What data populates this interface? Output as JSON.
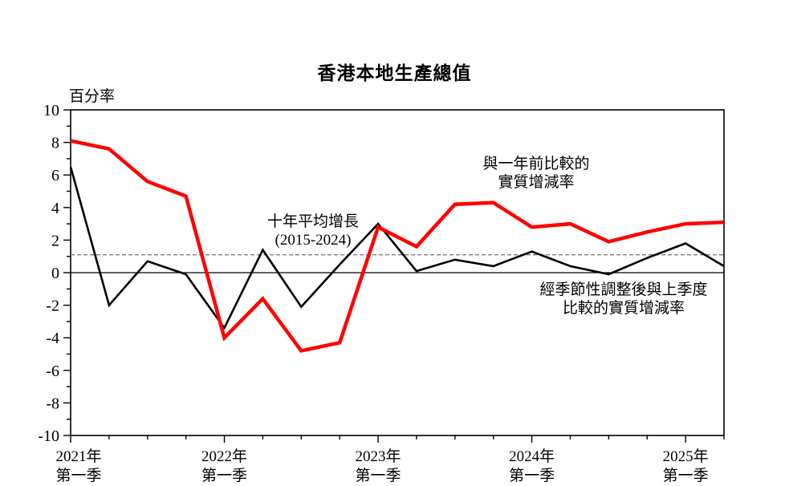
{
  "page": {
    "background": "#ffffff",
    "title": "香港本地生產總值"
  },
  "chart_data": {
    "type": "line",
    "title": "香港本地生產總值",
    "y_axis_unit_label": "百分率",
    "ylim": [
      -10,
      10
    ],
    "ytick_major_step": 2,
    "ytick_minor_step": 1,
    "grid": false,
    "x": [
      "2021Q1",
      "2021Q2",
      "2021Q3",
      "2021Q4",
      "2022Q1",
      "2022Q2",
      "2022Q3",
      "2022Q4",
      "2023Q1",
      "2023Q2",
      "2023Q3",
      "2023Q4",
      "2024Q1",
      "2024Q2",
      "2024Q3",
      "2024Q4",
      "2025Q1",
      "2025Q2"
    ],
    "x_year_labels": [
      "2021年",
      "2022年",
      "2023年",
      "2024年",
      "2025年"
    ],
    "x_sub_label": "第一季",
    "series": [
      {
        "name": "與一年前比較的實質增減率",
        "color": "#ff0000",
        "width": 4.5,
        "values": [
          8.1,
          7.6,
          5.6,
          4.7,
          -4.0,
          -1.6,
          -4.8,
          -4.3,
          2.8,
          1.6,
          4.2,
          4.3,
          2.8,
          3.0,
          1.9,
          2.5,
          3.0,
          3.1
        ]
      },
      {
        "name": "經季節性調整後與上季度比較的實質增減率",
        "color": "#000000",
        "width": 2.6,
        "values": [
          6.5,
          -2.0,
          0.7,
          -0.1,
          -3.4,
          1.4,
          -2.1,
          0.5,
          3.0,
          0.1,
          0.8,
          0.4,
          1.3,
          0.4,
          -0.1,
          0.9,
          1.8,
          0.4
        ]
      }
    ],
    "reference_line": {
      "label": "十年平均增長 (2015-2024)",
      "value": 1.1,
      "style": "dashed",
      "color": "#7f7f7f"
    },
    "annotations": {
      "yoy_label": "與一年前比較的\n實質增減率",
      "avg_label": "十年平均增長\n(2015-2024)",
      "qoq_label": "經季節性調整後與上季度\n比較的實質增減率"
    }
  }
}
